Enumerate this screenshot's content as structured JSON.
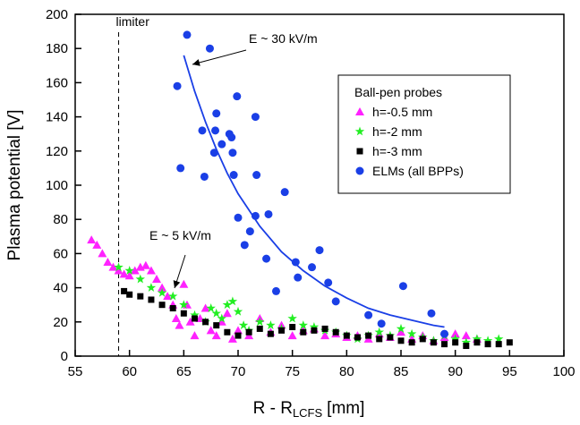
{
  "chart_data": {
    "type": "scatter",
    "xlabel": {
      "main": "R - R",
      "sub": "LCFS",
      "unit": "[mm]"
    },
    "ylabel": "Plasma potential [V]",
    "xlim": [
      55,
      100
    ],
    "xticks": [
      55,
      60,
      65,
      70,
      75,
      80,
      85,
      90,
      95,
      100
    ],
    "ylim": [
      0,
      200
    ],
    "yticks": [
      0,
      20,
      40,
      60,
      80,
      100,
      120,
      140,
      160,
      180,
      200
    ],
    "legend_title": "Ball-pen probes",
    "legend": "upper right",
    "limiter": {
      "label": "limiter",
      "x": 59
    },
    "annotations": [
      "E ~ 30 kV/m",
      "E ~ 5 kV/m"
    ],
    "series": [
      {
        "name": "h=-0.5 mm",
        "marker": "triangle",
        "color": "#ff22ff",
        "x": [
          56.5,
          57,
          57.5,
          58,
          58.5,
          59,
          59.5,
          60,
          60.5,
          61,
          61.5,
          62,
          62.5,
          63,
          63.5,
          64,
          64.3,
          64.6,
          65,
          65.3,
          65.6,
          66,
          66.5,
          67,
          67.5,
          68,
          68.5,
          69,
          69.5,
          70,
          71,
          72,
          73,
          74,
          75,
          76,
          77,
          78,
          79,
          80,
          81,
          82,
          83,
          84,
          85,
          86,
          87,
          88,
          89,
          90,
          91,
          92
        ],
        "values": [
          68,
          65,
          60,
          55,
          52,
          50,
          48,
          47,
          50,
          52,
          53,
          50,
          45,
          40,
          35,
          30,
          22,
          18,
          42,
          30,
          20,
          12,
          22,
          28,
          15,
          12,
          20,
          25,
          10,
          15,
          12,
          22,
          14,
          18,
          12,
          15,
          16,
          12,
          13,
          11,
          12,
          10,
          13,
          11,
          14,
          10,
          12,
          9,
          11,
          13,
          12,
          10
        ]
      },
      {
        "name": "h=-2 mm",
        "marker": "star",
        "color": "#22ee22",
        "x": [
          59,
          60,
          61,
          62,
          63,
          64,
          65,
          66,
          67,
          67.5,
          68,
          68.5,
          69,
          69.5,
          70,
          70.5,
          71,
          72,
          73,
          74,
          75,
          76,
          77,
          78,
          79,
          80,
          81,
          82,
          83,
          84,
          85,
          86,
          87,
          88,
          89,
          90,
          91,
          92,
          93,
          94
        ],
        "values": [
          52,
          50,
          45,
          40,
          37,
          35,
          30,
          24,
          20,
          28,
          25,
          22,
          30,
          32,
          26,
          18,
          15,
          20,
          18,
          16,
          22,
          18,
          17,
          15,
          14,
          12,
          10,
          12,
          14,
          12,
          16,
          13,
          11,
          9,
          12,
          10,
          8,
          10,
          9,
          10
        ]
      },
      {
        "name": "h=-3 mm",
        "marker": "square",
        "color": "#000000",
        "x": [
          59.5,
          60,
          61,
          62,
          63,
          64,
          65,
          66,
          67,
          68,
          69,
          70,
          71,
          72,
          73,
          74,
          75,
          76,
          77,
          78,
          79,
          80,
          81,
          82,
          83,
          84,
          85,
          86,
          87,
          88,
          89,
          90,
          91,
          92,
          93,
          94,
          95
        ],
        "values": [
          38,
          36,
          35,
          33,
          30,
          28,
          25,
          22,
          20,
          18,
          14,
          12,
          14,
          16,
          13,
          15,
          17,
          14,
          15,
          16,
          14,
          12,
          11,
          12,
          10,
          11,
          9,
          8,
          10,
          8,
          7,
          8,
          6,
          8,
          7,
          7,
          8
        ]
      },
      {
        "name": "ELMs (all BPPs)",
        "marker": "circle",
        "color": "#1a3fe6",
        "x": [
          65.3,
          67.4,
          64.4,
          69.9,
          71.6,
          68,
          66.7,
          67.9,
          69.2,
          69.4,
          68.5,
          67.8,
          69.5,
          64.7,
          66.9,
          69.6,
          71.7,
          74.3,
          70,
          71.6,
          72.8,
          71.1,
          70.6,
          77.5,
          75.3,
          76.8,
          72.6,
          75.5,
          78.3,
          73.5,
          79,
          82,
          85.2,
          87.8,
          83.2,
          89
        ],
        "values": [
          188,
          180,
          158,
          152,
          140,
          142,
          132,
          132,
          130,
          128,
          124,
          119,
          119,
          110,
          105,
          106,
          106,
          96,
          81,
          82,
          83,
          73,
          65,
          62,
          55,
          52,
          57,
          46,
          43,
          38,
          32,
          24,
          41,
          25,
          19,
          13
        ]
      },
      {
        "mode": "line",
        "color": "#1a3fe6",
        "x": [
          65,
          66,
          67,
          68,
          69,
          70,
          72,
          74,
          76,
          78,
          80,
          82,
          84,
          86,
          88,
          89
        ],
        "values": [
          176,
          155,
          137,
          121,
          107,
          95,
          76,
          61,
          50,
          41,
          34,
          28,
          24,
          21,
          18,
          17
        ]
      }
    ]
  }
}
